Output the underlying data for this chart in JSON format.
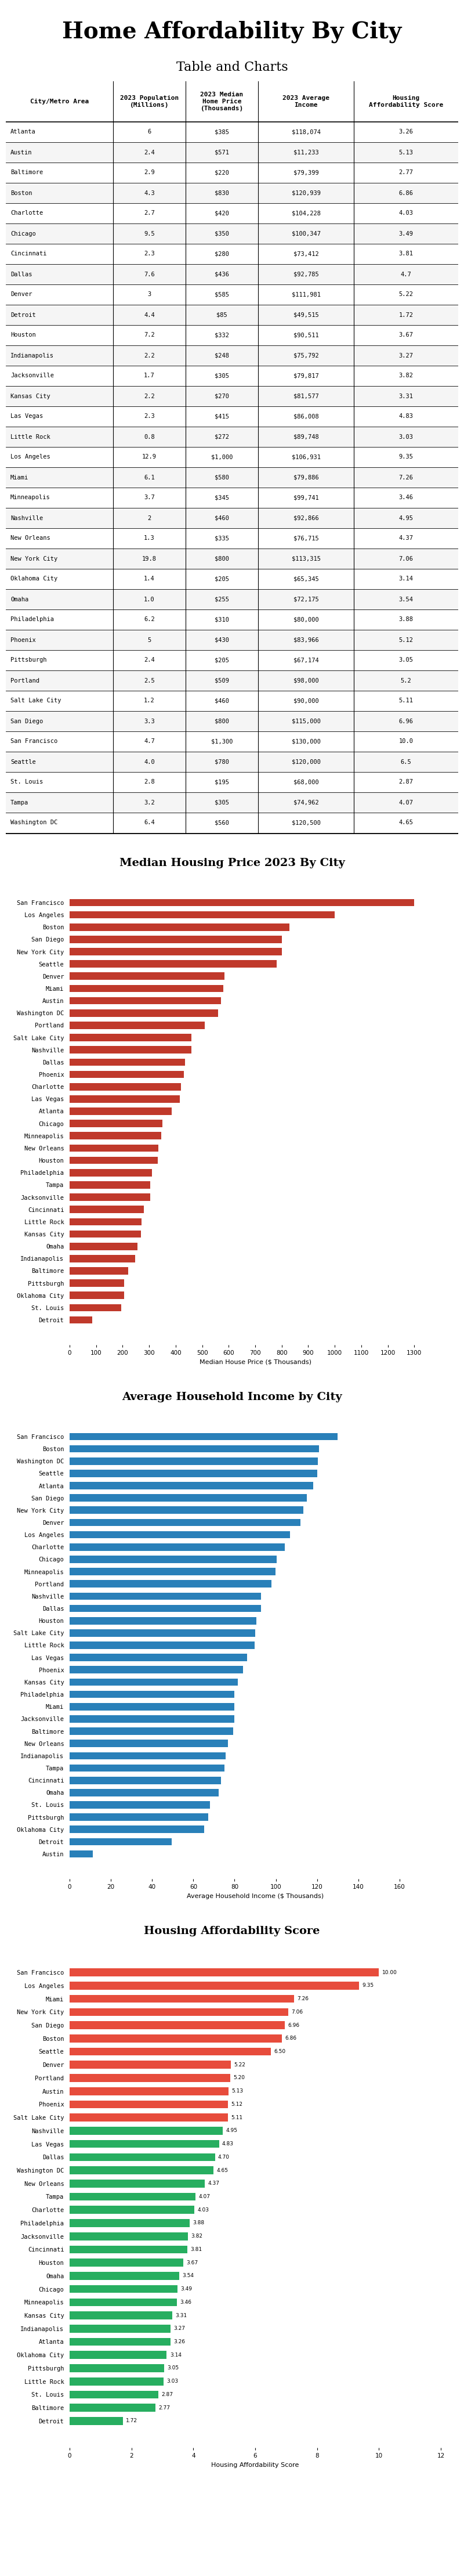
{
  "title": "Home Affordability By City",
  "subtitle": "Table and Charts",
  "cities": [
    "Atlanta",
    "Austin",
    "Baltimore",
    "Boston",
    "Charlotte",
    "Chicago",
    "Cincinnati",
    "Dallas",
    "Denver",
    "Detroit",
    "Houston",
    "Indianapolis",
    "Jacksonville",
    "Kansas City",
    "Las Vegas",
    "Little Rock",
    "Los Angeles",
    "Miami",
    "Minneapolis",
    "Nashville",
    "New Orleans",
    "New York City",
    "Oklahoma City",
    "Omaha",
    "Philadelphia",
    "Phoenix",
    "Pittsburgh",
    "Portland",
    "Salt Lake City",
    "San Diego",
    "San Francisco",
    "Seattle",
    "St. Louis",
    "Tampa",
    "Washington DC"
  ],
  "population": [
    6,
    2.4,
    2.9,
    4.3,
    2.7,
    9.5,
    2.3,
    7.6,
    3,
    4.4,
    7.2,
    2.2,
    1.7,
    2.2,
    2.3,
    0.8,
    12.9,
    6.1,
    3.7,
    2,
    1.3,
    19.8,
    1.4,
    1.0,
    6.2,
    5,
    2.4,
    2.5,
    1.2,
    3.3,
    4.7,
    4.0,
    2.8,
    3.2,
    6.4
  ],
  "median_home_price": [
    385,
    571,
    220,
    830,
    420,
    350,
    280,
    436,
    585,
    85,
    332,
    248,
    305,
    270,
    415,
    272,
    1000,
    580,
    345,
    460,
    335,
    800,
    205,
    255,
    310,
    430,
    205,
    509,
    460,
    800,
    1300,
    780,
    195,
    305,
    560
  ],
  "avg_income": [
    118074,
    11233,
    79399,
    120939,
    104228,
    100347,
    73412,
    92785,
    111981,
    49515,
    90511,
    75792,
    79817,
    81577,
    86008,
    89748,
    106931,
    79886,
    99741,
    92866,
    76715,
    113315,
    65345,
    72175,
    80000,
    83966,
    67174,
    98000,
    90000,
    115000,
    130000,
    120000,
    68000,
    74962,
    120500
  ],
  "affordability_score": [
    3.26,
    5.13,
    2.77,
    6.86,
    4.03,
    3.49,
    3.81,
    4.7,
    5.22,
    1.72,
    3.67,
    3.27,
    3.82,
    3.31,
    4.83,
    3.03,
    9.35,
    7.26,
    3.46,
    4.95,
    4.37,
    7.06,
    3.14,
    3.54,
    3.88,
    5.12,
    3.05,
    5.2,
    5.11,
    6.96,
    10.0,
    6.5,
    2.87,
    4.07,
    4.65
  ],
  "bar_color_price": "#c0392b",
  "bar_color_income": "#2980b9",
  "bar_color_score_low": "#27ae60",
  "bar_color_score_high": "#e74c3c",
  "table_header_bg": "#ffffff",
  "table_row_bg1": "#ffffff",
  "table_row_bg2": "#f8f8f8"
}
